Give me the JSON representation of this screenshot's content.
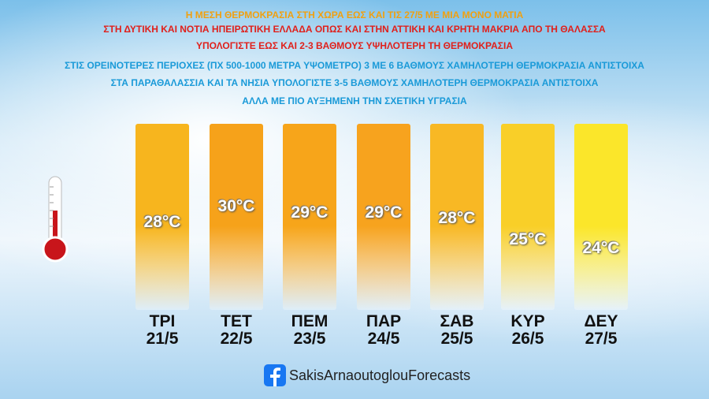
{
  "header": {
    "lines": [
      "Η ΜΕΣΗ ΘΕΡΜΟΚΡΑΣΙΑ ΣΤΗ ΧΩΡΑ ΕΩΣ ΚΑΙ ΤΙΣ 27/5 ΜΕ ΜΙΑ ΜΟΝΟ ΜΑΤΙΑ",
      "ΣΤΗ ΔΥΤΙΚΗ ΚΑΙ ΝΟΤΙΑ ΗΠΕΙΡΩΤΙΚΗ ΕΛΛΑΔΑ ΟΠΩΣ ΚΑΙ ΣΤΗΝ ΑΤΤΙΚΗ ΚΑΙ ΚΡΗΤΗ ΜΑΚΡΙΑ ΑΠΟ ΤΗ ΘΑΛΑΣΣΑ",
      "ΥΠΟΛΟΓΙΣΤΕ ΕΩΣ ΚΑΙ 2-3 ΒΑΘΜΟΥΣ ΥΨΗΛΟΤΕΡΗ ΤΗ ΘΕΡΜΟΚΡΑΣΙΑ",
      "ΣΤΙΣ ΟΡΕΙΝΟΤΕΡΕΣ ΠΕΡΙΟΧΕΣ (ΠΧ 500-1000 ΜΕΤΡΑ ΥΨΟΜΕΤΡΟ) 3 ΜΕ 6 ΒΑΘΜΟΥΣ ΧΑΜΗΛΟΤΕΡΗ ΘΕΡΜΟΚΡΑΣΙΑ ΑΝΤΙΣΤΟΙΧΑ",
      "ΣΤΑ ΠΑΡΑΘΑΛΑΣΣΙΑ ΚΑΙ ΤΑ ΝΗΣΙΑ ΥΠΟΛΟΓΙΣΤΕ 3-5 ΒΑΘΜΟΥΣ ΧΑΜΗΛΟΤΕΡΗ ΘΕΡΜΟΚΡΑΣΙΑ ΑΝΤΙΣΤΟΙΧΑ",
      "ΑΛΛΑ ΜΕ ΠΙΟ ΑΥΞΗΜΕΝΗ ΤΗΝ ΣΧΕΤΙΚΗ ΥΓΡΑΣΙΑ"
    ]
  },
  "days": [
    {
      "day": "ΤΡΙ",
      "date": "21/5",
      "temp": "28°C"
    },
    {
      "day": "ΤΕΤ",
      "date": "22/5",
      "temp": "30°C"
    },
    {
      "day": "ΠΕΜ",
      "date": "23/5",
      "temp": "29°C"
    },
    {
      "day": "ΠΑΡ",
      "date": "24/5",
      "temp": "29°C"
    },
    {
      "day": "ΣΑΒ",
      "date": "25/5",
      "temp": "28°C"
    },
    {
      "day": "ΚΥΡ",
      "date": "26/5",
      "temp": "25°C"
    },
    {
      "day": "ΔΕΥ",
      "date": "27/5",
      "temp": "24°C"
    }
  ],
  "footer": {
    "page": "SakisArnaoutoglouForecasts"
  }
}
